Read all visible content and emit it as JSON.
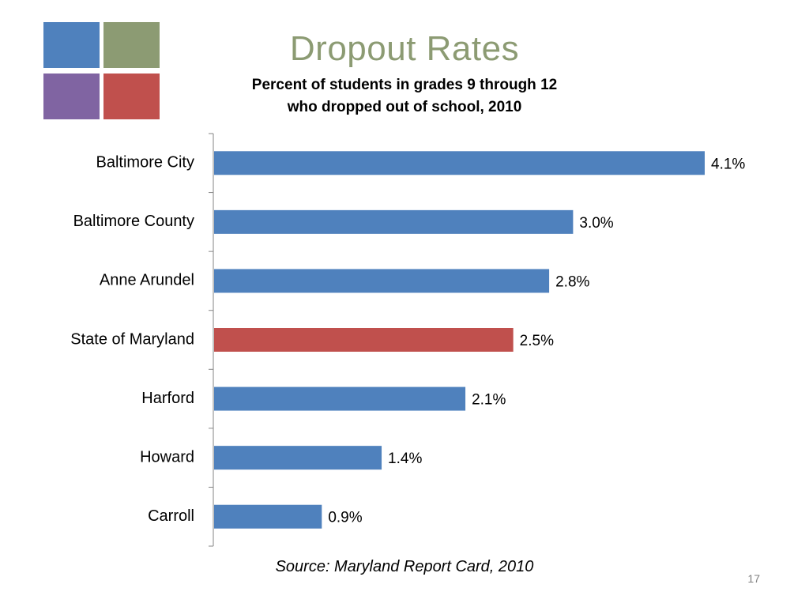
{
  "slide": {
    "title": "Dropout Rates",
    "subtitle_line1": "Percent of students in grades 9 through 12",
    "subtitle_line2": "who dropped out of school, 2010",
    "source": "Source: Maryland Report Card, 2010",
    "slide_number": "17"
  },
  "colors": {
    "title": "#8c9b73",
    "bar_default": "#4f81bd",
    "bar_highlight": "#c0504d",
    "axis": "#868686",
    "logo": [
      "#4f81bd",
      "#8c9b73",
      "#8064a2",
      "#c0504d"
    ]
  },
  "chart_data": {
    "type": "bar",
    "orientation": "horizontal",
    "categories": [
      "Baltimore City",
      "Baltimore County",
      "Anne Arundel",
      "State of Maryland",
      "Harford",
      "Howard",
      "Carroll"
    ],
    "values": [
      4.1,
      3.0,
      2.8,
      2.5,
      2.1,
      1.4,
      0.9
    ],
    "data_labels": [
      "4.1%",
      "3.0%",
      "2.8%",
      "2.5%",
      "2.1%",
      "1.4%",
      "0.9%"
    ],
    "highlight_category": "State of Maryland",
    "title": "",
    "xlabel": "",
    "ylabel": "",
    "xlim": [
      0,
      4.1
    ],
    "grid": false,
    "legend": "none"
  }
}
